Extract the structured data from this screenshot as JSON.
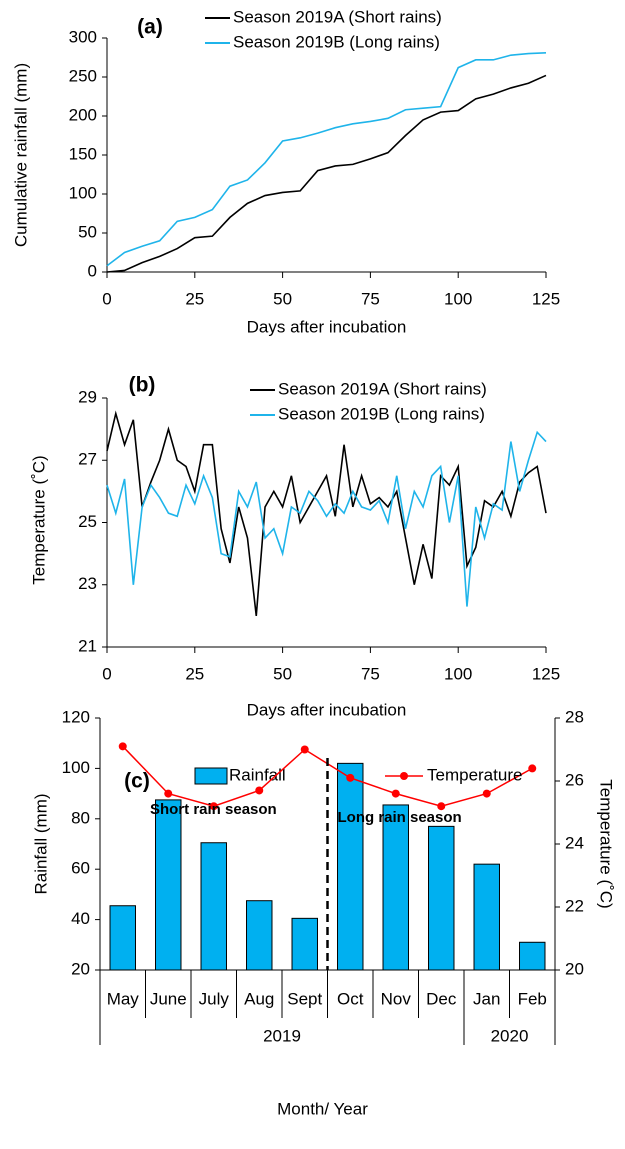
{
  "chart_data": [
    {
      "type": "line",
      "title": "(a)",
      "xlabel": "Days after incubation",
      "ylabel": "Cumulative rainfall (mm)",
      "x": [
        0,
        5,
        10,
        15,
        20,
        25,
        30,
        35,
        40,
        45,
        50,
        55,
        60,
        65,
        70,
        75,
        80,
        85,
        90,
        95,
        100,
        105,
        110,
        115,
        120,
        125
      ],
      "series": [
        {
          "name": "Season 2019A (Short rains)",
          "color": "#000000",
          "values": [
            0,
            2,
            12,
            20,
            30,
            44,
            46,
            70,
            88,
            98,
            102,
            104,
            130,
            136,
            138,
            145,
            153,
            175,
            195,
            205,
            207,
            222,
            228,
            236,
            242,
            252
          ]
        },
        {
          "name": "Season 2019B (Long rains)",
          "color": "#1fb4ea",
          "values": [
            8,
            25,
            33,
            40,
            65,
            70,
            80,
            110,
            118,
            140,
            168,
            172,
            178,
            185,
            190,
            193,
            197,
            208,
            210,
            212,
            262,
            272,
            272,
            278,
            280,
            281
          ]
        }
      ],
      "xlim": [
        0,
        125
      ],
      "xticks": [
        0,
        25,
        50,
        75,
        100,
        125
      ],
      "ylim": [
        0,
        300
      ],
      "yticks": [
        0,
        50,
        100,
        150,
        200,
        250,
        300
      ]
    },
    {
      "type": "line",
      "title": "(b)",
      "xlabel": "Days after incubation",
      "ylabel": "Temperature (˚C)",
      "x": [
        0,
        2.5,
        5,
        7.5,
        10,
        12.5,
        15,
        17.5,
        20,
        22.5,
        25,
        27.5,
        30,
        32.5,
        35,
        37.5,
        40,
        42.5,
        45,
        47.5,
        50,
        52.5,
        55,
        57.5,
        60,
        62.5,
        65,
        67.5,
        70,
        72.5,
        75,
        77.5,
        80,
        82.5,
        85,
        87.5,
        90,
        92.5,
        95,
        97.5,
        100,
        102.5,
        105,
        107.5,
        110,
        112.5,
        115,
        117.5,
        120,
        122.5,
        125
      ],
      "series": [
        {
          "name": "Season 2019A (Short rains)",
          "color": "#000000",
          "values": [
            27.3,
            28.5,
            27.5,
            28.3,
            25.5,
            26.3,
            27,
            28,
            27,
            26.8,
            26,
            27.5,
            27.5,
            24.8,
            23.7,
            25.5,
            24.5,
            22,
            25.5,
            26,
            25.5,
            26.5,
            25,
            25.5,
            26,
            26.5,
            25.2,
            27.5,
            25.5,
            26.5,
            25.6,
            25.8,
            25.5,
            26,
            24.5,
            23,
            24.3,
            23.2,
            26.5,
            26.2,
            26.8,
            23.6,
            24.2,
            25.7,
            25.5,
            26,
            25.2,
            26.3,
            26.6,
            26.8,
            25.3
          ]
        },
        {
          "name": "Season 2019B (Long rains)",
          "color": "#1fb4ea",
          "values": [
            26.2,
            25.3,
            26.4,
            23,
            25.5,
            26.2,
            25.8,
            25.3,
            25.2,
            26.2,
            25.6,
            26.5,
            25.8,
            24,
            23.9,
            26,
            25.5,
            26.3,
            24.5,
            24.8,
            24,
            25.5,
            25.3,
            26,
            25.7,
            25.2,
            25.6,
            25.3,
            26,
            25.5,
            25.4,
            25.7,
            25,
            26.5,
            24.8,
            26,
            25.5,
            26.5,
            26.8,
            25,
            26.5,
            22.3,
            25.5,
            24.5,
            25.6,
            25.4,
            27.6,
            26,
            27,
            27.9,
            27.6
          ]
        }
      ],
      "xlim": [
        0,
        125
      ],
      "xticks": [
        0,
        25,
        50,
        75,
        100,
        125
      ],
      "ylim": [
        21,
        29
      ],
      "yticks": [
        21,
        23,
        25,
        27,
        29
      ]
    },
    {
      "type": "combo",
      "title": "(c)",
      "xlabel": "Month/ Year",
      "ylabel": "Rainfall (mm)",
      "y2label": "Temperature (˚C)",
      "categories": [
        "May",
        "June",
        "July",
        "Aug",
        "Sept",
        "Oct",
        "Nov",
        "Dec",
        "Jan",
        "Feb"
      ],
      "groups": [
        {
          "label": "2019",
          "count": 8
        },
        {
          "label": "2020",
          "count": 2
        }
      ],
      "annotations": [
        "Short rain season",
        "Long rain season"
      ],
      "series": [
        {
          "name": "Rainfall",
          "kind": "bar",
          "color": "#00b0f0",
          "values": [
            45.5,
            87.5,
            70.5,
            47.5,
            40.5,
            102,
            85.5,
            77,
            62,
            31
          ]
        },
        {
          "name": "Temperature",
          "kind": "line",
          "axis": "y2",
          "color": "#ff0000",
          "values": [
            27.1,
            25.6,
            25.2,
            25.7,
            27.0,
            26.1,
            25.6,
            25.2,
            25.6,
            26.4
          ]
        }
      ],
      "ylim": [
        20,
        120
      ],
      "yticks": [
        20,
        40,
        60,
        80,
        100,
        120
      ],
      "y2lim": [
        20,
        28
      ],
      "y2ticks": [
        20,
        22,
        24,
        26,
        28
      ]
    }
  ]
}
